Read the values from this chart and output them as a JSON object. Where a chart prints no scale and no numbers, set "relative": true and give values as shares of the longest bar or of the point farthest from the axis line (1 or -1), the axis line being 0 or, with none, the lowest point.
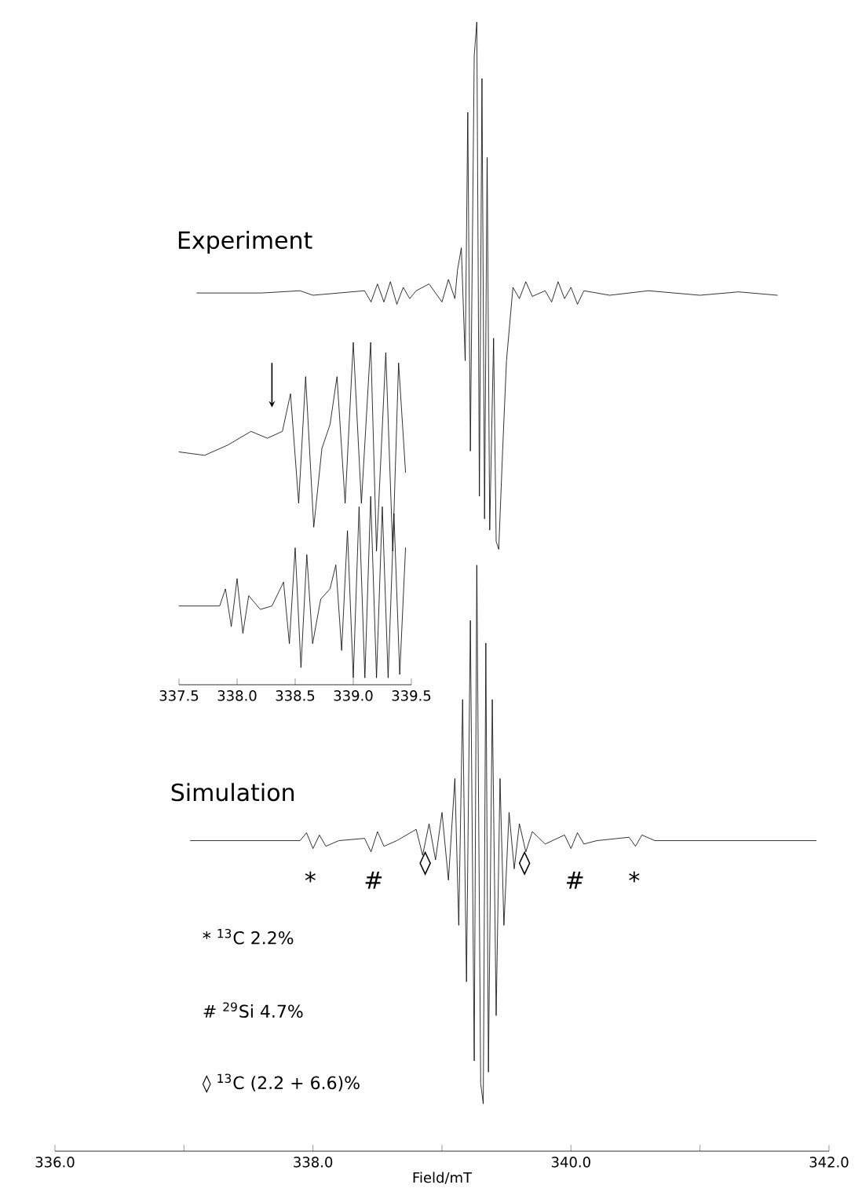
{
  "chart_data": [
    {
      "type": "line",
      "relative": true,
      "xlabel": "Field/mT",
      "xlim": [
        336,
        342
      ],
      "xticks": [
        {
          "value": 336,
          "label": "336.0"
        },
        {
          "value": 337,
          "label": null
        },
        {
          "value": 338,
          "label": "338.0"
        },
        {
          "value": 339,
          "label": null
        },
        {
          "value": 340,
          "label": "340.0"
        },
        {
          "value": 341,
          "label": null
        },
        {
          "value": 342,
          "label": "342.0"
        }
      ],
      "grid": false,
      "marker": "none",
      "line_style": "solid",
      "series": [
        {
          "name": "Experiment",
          "color": "#000000",
          "x": [
            337.1,
            337.6,
            337.9,
            338.0,
            338.4,
            338.45,
            338.5,
            338.55,
            338.6,
            338.65,
            338.7,
            338.75,
            338.8,
            338.9,
            339.0,
            339.05,
            339.1,
            339.12,
            339.15,
            339.18,
            339.2,
            339.22,
            339.25,
            339.27,
            339.29,
            339.31,
            339.33,
            339.35,
            339.37,
            339.4,
            339.42,
            339.44,
            339.47,
            339.5,
            339.55,
            339.6,
            339.65,
            339.7,
            339.8,
            339.85,
            339.9,
            339.95,
            340.0,
            340.05,
            340.1,
            340.3,
            340.6,
            341.0,
            341.3,
            341.6
          ],
          "values": [
            0.76,
            0.76,
            0.762,
            0.758,
            0.762,
            0.752,
            0.768,
            0.752,
            0.77,
            0.75,
            0.765,
            0.755,
            0.762,
            0.768,
            0.752,
            0.772,
            0.755,
            0.78,
            0.8,
            0.7,
            0.92,
            0.62,
            0.97,
            1.0,
            0.58,
            0.95,
            0.56,
            0.88,
            0.55,
            0.72,
            0.54,
            0.533,
            0.62,
            0.7,
            0.765,
            0.755,
            0.77,
            0.757,
            0.762,
            0.752,
            0.77,
            0.755,
            0.765,
            0.75,
            0.762,
            0.758,
            0.762,
            0.758,
            0.761,
            0.758
          ]
        },
        {
          "name": "Simulation",
          "color": "#000000",
          "x": [
            337.05,
            337.9,
            337.95,
            338.0,
            338.05,
            338.1,
            338.2,
            338.4,
            338.45,
            338.5,
            338.55,
            338.65,
            338.8,
            338.85,
            338.9,
            338.95,
            339.0,
            339.05,
            339.1,
            339.13,
            339.16,
            339.19,
            339.22,
            339.25,
            339.27,
            339.3,
            339.32,
            339.34,
            339.36,
            339.39,
            339.42,
            339.45,
            339.48,
            339.52,
            339.56,
            339.6,
            339.65,
            339.7,
            339.8,
            339.95,
            340.0,
            340.05,
            340.1,
            340.2,
            340.45,
            340.5,
            340.55,
            340.65,
            341.9
          ],
          "values": [
            0.275,
            0.275,
            0.282,
            0.268,
            0.28,
            0.27,
            0.275,
            0.277,
            0.265,
            0.283,
            0.27,
            0.275,
            0.285,
            0.262,
            0.29,
            0.258,
            0.3,
            0.24,
            0.33,
            0.2,
            0.4,
            0.15,
            0.47,
            0.08,
            0.519,
            0.06,
            0.042,
            0.45,
            0.07,
            0.4,
            0.12,
            0.33,
            0.2,
            0.3,
            0.25,
            0.29,
            0.265,
            0.283,
            0.272,
            0.28,
            0.268,
            0.282,
            0.272,
            0.275,
            0.278,
            0.27,
            0.28,
            0.275,
            0.275
          ]
        }
      ],
      "annotations": [
        "*",
        "#",
        "◊",
        "◊",
        "#",
        "*",
        "* $^{13}$C 2.2%",
        "# $^{29}$Si  4.7%",
        "◊ $^{13}$C  (2.2 + 6.6)%"
      ]
    },
    {
      "type": "line",
      "relative": true,
      "xlim": [
        337.5,
        339.5
      ],
      "xticks": [
        337.5,
        {
          "value": 338,
          "label": "338.0"
        },
        338.5,
        {
          "value": 339,
          "label": "339.0"
        },
        339.5
      ],
      "grid": false,
      "marker": "none",
      "line_style": "solid",
      "series": [
        {
          "color": "#000000",
          "x": [
            337.5,
            337.72,
            337.92,
            338.12,
            338.26,
            338.39,
            338.46,
            338.53,
            338.59,
            338.66,
            338.73,
            338.8,
            338.86,
            338.93,
            339.0,
            339.07,
            339.15,
            339.2,
            339.28,
            339.34,
            339.39,
            339.45
          ],
          "values": [
            0.68,
            0.67,
            0.7,
            0.74,
            0.72,
            0.74,
            0.85,
            0.53,
            0.9,
            0.46,
            0.69,
            0.76,
            0.9,
            0.53,
            1.0,
            0.53,
            1.0,
            0.39,
            0.97,
            0.39,
            0.94,
            0.62
          ]
        },
        {
          "color": "#000000",
          "x": [
            337.5,
            337.85,
            337.9,
            337.95,
            338.0,
            338.05,
            338.1,
            338.2,
            338.3,
            338.4,
            338.45,
            338.5,
            338.55,
            338.6,
            338.65,
            338.72,
            338.8,
            338.85,
            338.9,
            338.95,
            339.0,
            339.05,
            339.1,
            339.15,
            339.2,
            339.25,
            339.3,
            339.35,
            339.4,
            339.45
          ],
          "values": [
            0.23,
            0.23,
            0.28,
            0.17,
            0.31,
            0.15,
            0.26,
            0.22,
            0.23,
            0.3,
            0.12,
            0.4,
            0.05,
            0.38,
            0.12,
            0.25,
            0.28,
            0.35,
            0.1,
            0.45,
            0.02,
            0.52,
            0.02,
            0.55,
            0.02,
            0.52,
            0.02,
            0.5,
            0.03,
            0.4
          ]
        }
      ]
    }
  ]
}
